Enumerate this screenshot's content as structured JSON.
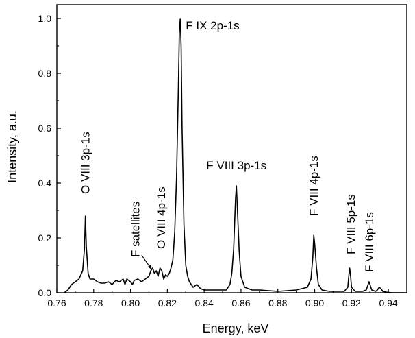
{
  "chart_data": {
    "type": "line",
    "xlabel": "Energy, keV",
    "ylabel": "Intensity, a.u.",
    "xlim": [
      0.76,
      0.95
    ],
    "ylim": [
      0.0,
      1.05
    ],
    "xticks": [
      0.76,
      0.78,
      0.8,
      0.82,
      0.84,
      0.86,
      0.88,
      0.9,
      0.92,
      0.94
    ],
    "xtick_labels": [
      "0.76",
      "0.78",
      "0.80",
      "0.82",
      "0.84",
      "0.86",
      "0.88",
      "0.90",
      "0.92",
      "0.94"
    ],
    "yticks": [
      0.0,
      0.2,
      0.4,
      0.6,
      0.8,
      1.0
    ],
    "ytick_labels": [
      "0.0",
      "0.2",
      "0.4",
      "0.6",
      "0.8",
      "1.0"
    ],
    "grid": false,
    "series": [
      {
        "color": "#000000",
        "x": [
          0.764,
          0.766,
          0.768,
          0.77,
          0.772,
          0.774,
          0.775,
          0.7755,
          0.776,
          0.777,
          0.778,
          0.78,
          0.782,
          0.784,
          0.786,
          0.788,
          0.79,
          0.792,
          0.794,
          0.796,
          0.797,
          0.798,
          0.8,
          0.801,
          0.802,
          0.804,
          0.806,
          0.808,
          0.81,
          0.811,
          0.812,
          0.813,
          0.814,
          0.815,
          0.816,
          0.817,
          0.818,
          0.819,
          0.82,
          0.821,
          0.822,
          0.823,
          0.824,
          0.825,
          0.826,
          0.8265,
          0.827,
          0.8275,
          0.828,
          0.829,
          0.83,
          0.831,
          0.832,
          0.834,
          0.836,
          0.838,
          0.84,
          0.844,
          0.848,
          0.852,
          0.854,
          0.855,
          0.856,
          0.857,
          0.8575,
          0.858,
          0.859,
          0.86,
          0.862,
          0.866,
          0.87,
          0.88,
          0.89,
          0.896,
          0.898,
          0.899,
          0.8995,
          0.9,
          0.901,
          0.902,
          0.904,
          0.908,
          0.912,
          0.916,
          0.918,
          0.9185,
          0.919,
          0.9195,
          0.92,
          0.922,
          0.926,
          0.928,
          0.929,
          0.9295,
          0.93,
          0.931,
          0.933,
          0.934,
          0.935,
          0.936,
          0.937,
          0.939,
          0.942,
          0.946,
          0.949
        ],
        "y": [
          0.0,
          0.01,
          0.03,
          0.04,
          0.05,
          0.08,
          0.16,
          0.28,
          0.17,
          0.07,
          0.05,
          0.05,
          0.04,
          0.035,
          0.035,
          0.04,
          0.03,
          0.045,
          0.04,
          0.05,
          0.03,
          0.05,
          0.04,
          0.03,
          0.045,
          0.05,
          0.04,
          0.05,
          0.06,
          0.08,
          0.09,
          0.07,
          0.08,
          0.06,
          0.09,
          0.08,
          0.05,
          0.065,
          0.06,
          0.07,
          0.09,
          0.12,
          0.22,
          0.42,
          0.75,
          0.95,
          1.0,
          0.9,
          0.6,
          0.25,
          0.1,
          0.06,
          0.04,
          0.02,
          0.03,
          0.015,
          0.01,
          0.01,
          0.01,
          0.01,
          0.03,
          0.07,
          0.16,
          0.34,
          0.39,
          0.31,
          0.15,
          0.06,
          0.02,
          0.01,
          0.01,
          0.005,
          0.01,
          0.02,
          0.05,
          0.13,
          0.21,
          0.18,
          0.09,
          0.03,
          0.01,
          0.005,
          0.005,
          0.005,
          0.02,
          0.06,
          0.09,
          0.06,
          0.02,
          0.005,
          0.005,
          0.01,
          0.03,
          0.04,
          0.03,
          0.01,
          0.005,
          0.01,
          0.02,
          0.015,
          0.005,
          0.002,
          0.0,
          0.0,
          0.0
        ]
      }
    ],
    "annotations": [
      {
        "text": "F IX 2p-1s",
        "x": 0.83,
        "y": 0.96,
        "rotation": 0
      },
      {
        "text": "O VIII 3p-1s",
        "x": 0.7755,
        "y": 0.36,
        "rotation": -90
      },
      {
        "text": "F satellites",
        "x": 0.8025,
        "y": 0.13,
        "rotation": -90
      },
      {
        "text": "O VIII 4p-1s",
        "x": 0.8165,
        "y": 0.16,
        "rotation": -90
      },
      {
        "text": "F VIII 3p-1s",
        "x": 0.8575,
        "y": 0.45,
        "rotation": 0
      },
      {
        "text": "F VIII 4p-1s",
        "x": 0.8995,
        "y": 0.28,
        "rotation": -90
      },
      {
        "text": "F VIII 5p-1s",
        "x": 0.9195,
        "y": 0.14,
        "rotation": -90
      },
      {
        "text": "F VIII 6p-1s",
        "x": 0.9295,
        "y": 0.075,
        "rotation": -90
      }
    ],
    "arrow": {
      "from": [
        0.806,
        0.137
      ],
      "to": [
        0.8115,
        0.085
      ]
    }
  }
}
